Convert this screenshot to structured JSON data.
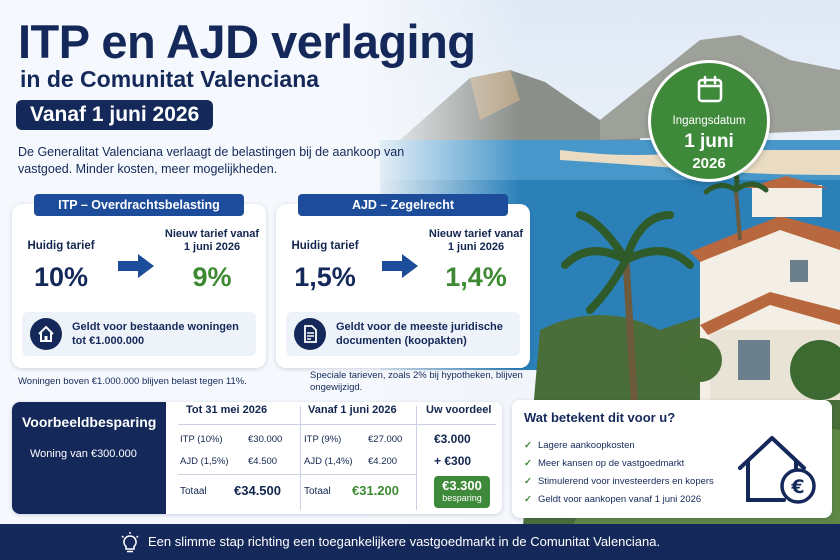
{
  "title": "ITP en AJD verlaging",
  "subtitle": "in de Comunitat Valenciana",
  "date_pill": "Vanaf 1 juni 2026",
  "intro": "De Generalitat Valenciana verlaagt de belastingen bij de aankoop van vastgoed. Minder kosten, meer mogelijkheden.",
  "badge": {
    "line1": "Ingangsdatum",
    "line2": "1 juni",
    "line3": "2026",
    "icon": "calendar-icon"
  },
  "itp": {
    "header": "ITP – Overdrachtsbelasting",
    "current_label": "Huidig tarief",
    "current_value": "10%",
    "new_label": "Nieuw tarief vanaf 1 juni 2026",
    "new_value": "9%",
    "note": "Geldt voor bestaande woningen tot €1.000.000",
    "note_icon": "house-icon"
  },
  "ajd": {
    "header": "AJD – Zegelrecht",
    "current_label": "Huidig tarief",
    "current_value": "1,5%",
    "new_label": "Nieuw tarief vanaf 1 juni 2026",
    "new_value": "1,4%",
    "note": "Geldt voor de meeste juridische documenten (koopakten)",
    "note_icon": "document-icon"
  },
  "footnote_itp": "Woningen boven €1.000.000 blijven belast tegen 11%.",
  "footnote_ajd": "Speciale tarieven, zoals 2% bij hypotheken, blijven ongewijzigd.",
  "example": {
    "title": "Voorbeeldbesparing",
    "subtitle": "Woning van €300.000",
    "col_old": "Tot 31 mei 2026",
    "col_new": "Vanaf 1 juni 2026",
    "col_benefit": "Uw voordeel",
    "old_rows": [
      {
        "label": "ITP (10%)",
        "value": "€30.000"
      },
      {
        "label": "AJD (1,5%)",
        "value": "€4.500"
      }
    ],
    "new_rows": [
      {
        "label": "ITP (9%)",
        "value": "€27.000"
      },
      {
        "label": "AJD (1,4%)",
        "value": "€4.200"
      }
    ],
    "benefits": [
      "€3.000",
      "+ €300"
    ],
    "total_label": "Totaal",
    "old_total": "€34.500",
    "new_total": "€31.200",
    "saving_value": "€3.300",
    "saving_label": "besparing"
  },
  "what": {
    "title": "Wat betekent dit voor u?",
    "items": [
      "Lagere aankoopkosten",
      "Meer kansen op de vastgoedmarkt",
      "Stimulerend voor investeerders en kopers",
      "Geldt voor aankopen vanaf 1 juni 2026"
    ],
    "icon": "house-euro-icon"
  },
  "bottom_bar": "Een slimme stap richting een toegankelijkere vastgoedmarkt in de Comunitat Valenciana.",
  "colors": {
    "navy": "#14295a",
    "blue": "#1d4c9a",
    "green": "#3f8a3a",
    "new_rate": "#3d8a33"
  }
}
